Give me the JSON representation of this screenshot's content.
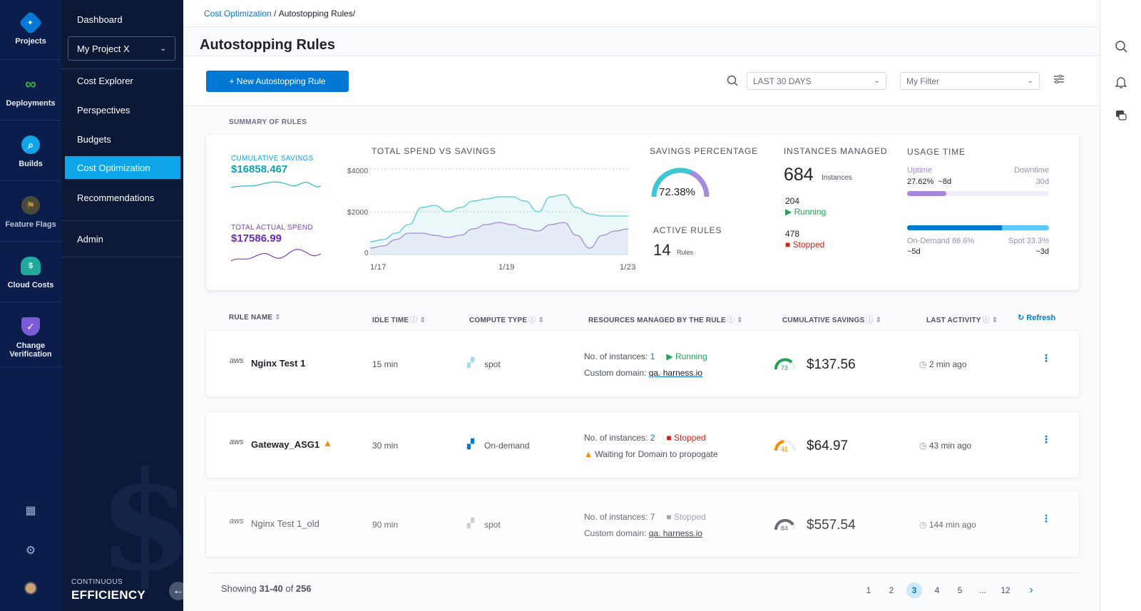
{
  "nav_rail": {
    "items": [
      {
        "label": "Projects",
        "icon": "diamond-grid-icon"
      },
      {
        "label": "Deployments",
        "icon": "infinity-icon"
      },
      {
        "label": "Builds",
        "icon": "search-bubble-icon"
      },
      {
        "label": "Feature Flags",
        "icon": "flag-icon"
      },
      {
        "label": "Cloud Costs",
        "icon": "cloud-dollar-icon"
      },
      {
        "label": "Change Verification",
        "icon": "shield-check-icon"
      }
    ]
  },
  "subnav": {
    "dashboard": "Dashboard",
    "project": "My Project X",
    "cost_explorer": "Cost Explorer",
    "perspectives": "Perspectives",
    "budgets": "Budgets",
    "cost_optimization": "Cost Optimization",
    "recommendations": "Recommendations",
    "admin": "Admin",
    "brand_small": "CONTINUOUS",
    "brand_big": "EFFICIENCY"
  },
  "breadcrumb": {
    "parent": "Cost Optimization",
    "sep": " / ",
    "current": "Autostopping Rules/"
  },
  "page_title": "Autostopping Rules",
  "toolbar": {
    "new_button": "+ New Autostopping Rule",
    "date_range": "LAST 30 DAYS",
    "filter": "My Filter"
  },
  "summary": {
    "label": "SUMMARY OF RULES",
    "cumulative_savings_label": "CUMULATIVE SAVINGS",
    "cumulative_savings": "$16858.467",
    "total_spend_label": "TOTAL ACTUAL SPEND",
    "total_spend": "$17586.99",
    "chart_title": "TOTAL SPEND VS SAVINGS",
    "savings_pct_label": "SAVINGS PERCENTAGE",
    "savings_pct": "72.38%",
    "active_rules_label": "ACTIVE RULES",
    "active_rules": "14",
    "active_rules_unit": "Rules",
    "instances_label": "INSTANCES MANAGED",
    "instances": "684",
    "instances_unit": "Instances",
    "running_count": "204",
    "running_label": "Running",
    "stopped_count": "478",
    "stopped_label": "Stopped",
    "usage_label": "USAGE TIME",
    "uptime_label": "Uptime",
    "downtime_label": "Downtime",
    "uptime_value": "27.62%  ~8d",
    "downtime_value": "30d",
    "uptime_fraction": 0.2762,
    "ondemand_label": "On-Demand 66.6%",
    "spot_label": "Spot 33.3%",
    "ondemand_value": "~5d",
    "spot_value": "~3d",
    "ondemand_fraction": 0.666
  },
  "chart_data": {
    "type": "area",
    "title": "TOTAL SPEND VS SAVINGS",
    "x_ticks": [
      "1/17",
      "1/19",
      "1/23"
    ],
    "y_ticks": [
      "$4000",
      "$2000",
      "0"
    ],
    "ylim": [
      0,
      4000
    ],
    "x": [
      0,
      1,
      2,
      3,
      4,
      5,
      6,
      7,
      8,
      9,
      10,
      11,
      12,
      13,
      14,
      15,
      16,
      17,
      18,
      19,
      20
    ],
    "series": [
      {
        "values": [
          600,
          700,
          1000,
          1400,
          2200,
          2300,
          2000,
          2200,
          2500,
          2600,
          2700,
          2700,
          2500,
          2000,
          2700,
          2800,
          2200,
          1900,
          1800,
          1800,
          1800
        ],
        "color": "#5ac8d8"
      },
      {
        "values": [
          300,
          400,
          700,
          1000,
          1000,
          900,
          800,
          900,
          1200,
          1400,
          1500,
          1400,
          1200,
          1100,
          1400,
          1500,
          900,
          300,
          900,
          1100,
          1200
        ],
        "color": "#a688dc"
      }
    ],
    "grid": true
  },
  "table": {
    "headers": {
      "rule_name": "RULE NAME",
      "idle_time": "IDLE TIME",
      "compute_type": "COMPUTE TYPE",
      "resources": "RESOURCES MANAGED BY THE RULE",
      "savings": "CUMULATIVE SAVINGS",
      "last_activity": "LAST ACTIVITY"
    },
    "refresh": "Refresh",
    "rows": [
      {
        "provider": "aws",
        "name": "Nginx Test 1",
        "idle": "15 min",
        "compute": "spot",
        "instances_label": "No. of instances:",
        "instances": "1",
        "status": "Running",
        "line2": "Custom domain:",
        "domain": "qa. harness.io",
        "gauge": "73",
        "savings": "$137.56",
        "activity": "2 min ago",
        "gauge_color": "#1ea355"
      },
      {
        "provider": "aws",
        "name": "Gateway_ASG1",
        "idle": "30 min",
        "compute": "On-demand",
        "instances_label": "No. of instances:",
        "instances": "2",
        "status": "Stopped",
        "line2": "Waiting for Domain to propogate",
        "domain": "",
        "gauge": "41",
        "savings": "$64.97",
        "activity": "43 min ago",
        "gauge_color": "#ff8800"
      },
      {
        "provider": "aws",
        "name": "Nginx Test 1_old",
        "idle": "90 min",
        "compute": "spot",
        "instances_label": "No. of instances:",
        "instances": "7",
        "status": "Stopped",
        "line2": "Custom domain:",
        "domain": "qa. harness.io",
        "gauge": "84",
        "savings": "$557.54",
        "activity": "144 min ago",
        "gauge_color": "#4f5162"
      }
    ]
  },
  "pagination": {
    "showing_prefix": "Showing",
    "range": "31-40",
    "of": "of",
    "total": "256",
    "pages": [
      "1",
      "2",
      "3",
      "4",
      "5",
      "...",
      "12"
    ],
    "current": "3"
  }
}
